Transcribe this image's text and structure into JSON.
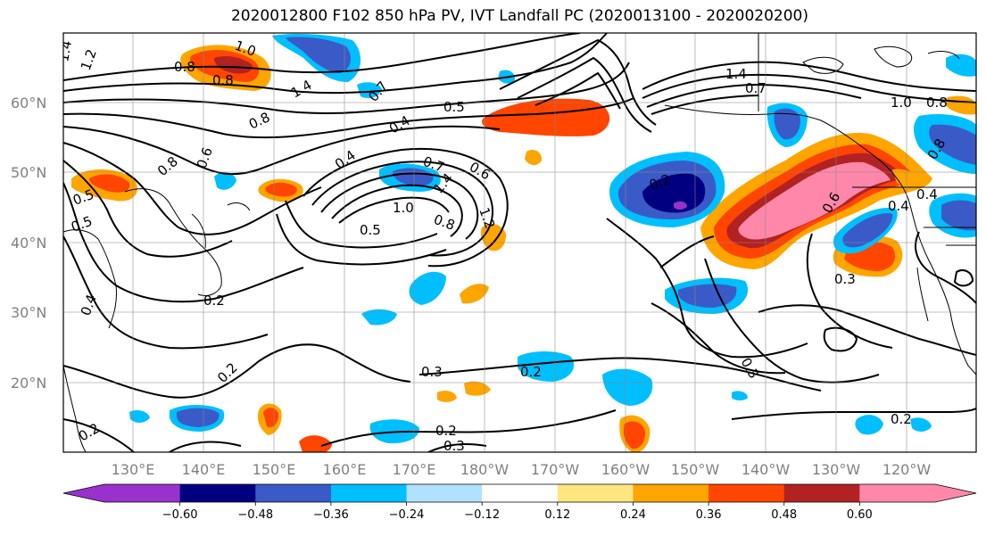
{
  "title": "2020012800 F102 850 hPa PV, IVT Landfall PC (2020013100 - 2020020200)",
  "lat_ticks": [
    "60°N",
    "50°N",
    "40°N",
    "30°N",
    "20°N"
  ],
  "lon_ticks": [
    "130°E",
    "140°E",
    "150°E",
    "160°E",
    "170°E",
    "180°W",
    "170°W",
    "160°W",
    "150°W",
    "140°W",
    "130°W",
    "120°W"
  ],
  "colorbar": {
    "colors": [
      "#9932cc",
      "#000080",
      "#3a5bc7",
      "#00bfff",
      "#b0e2ff",
      "#ffffff",
      "#ffe680",
      "#ffa500",
      "#ff4500",
      "#b22222",
      "#ff88aa"
    ],
    "labels": [
      "−0.60",
      "−0.48",
      "−0.36",
      "−0.24",
      "−0.12",
      "0.12",
      "0.24",
      "0.36",
      "0.48",
      "0.60"
    ]
  },
  "contour_labels": [
    "1.4",
    "1.2",
    "1.0",
    "0.8",
    "0.8",
    "1.4",
    "0.8",
    "0.7",
    "0.5",
    "0.4",
    "0.4",
    "0.7",
    "0.6",
    "0.8",
    "1.0",
    "0.8",
    "1.4",
    "1.2",
    "0.5",
    "0.2",
    "0.4",
    "0.2",
    "0.3",
    "0.2",
    "0.2",
    "0.3",
    "1.4",
    "0.7",
    "1.0",
    "0.8",
    "0.5",
    "0.8",
    "0.6",
    "0.6",
    "0.4",
    "0.3",
    "0.3",
    "0.2",
    "0.2",
    "0.5",
    "0.4",
    "0.2"
  ]
}
